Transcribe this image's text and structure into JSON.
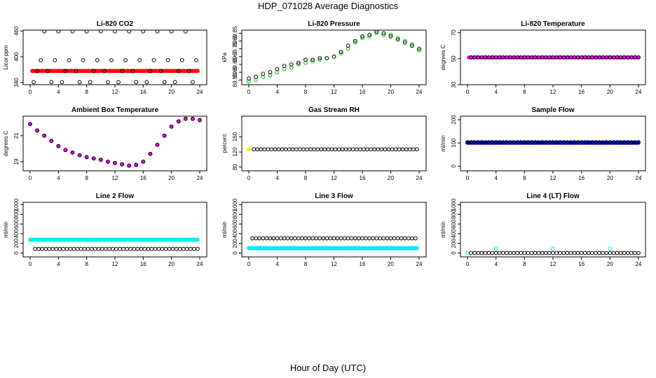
{
  "title": "HDP_071028  Average Diagnostics",
  "xlabel": "Hour of Day (UTC)",
  "chart_data": [
    {
      "type": "scatter",
      "title": "Li-820 CO2",
      "ylabel": "Licor ppm",
      "xlim": [
        0,
        24
      ],
      "ylim": [
        335,
        462
      ],
      "xticks": [
        0,
        4,
        8,
        12,
        16,
        20,
        24
      ],
      "yticks": [
        340,
        400,
        460
      ],
      "series": [
        {
          "name": "CO2 sampled lines",
          "color": "#ff0000",
          "filled": true,
          "x_start": 0.3,
          "x_end": 23.7,
          "x_step": 0.2,
          "y": [
            367
          ]
        },
        {
          "name": "CO2 cycle 1",
          "color": "#000000",
          "filled": false,
          "x_start": 0.5,
          "x_end": 23.6,
          "x_step": 0.5,
          "y": [
            341,
            367,
            392,
            459,
            367,
            341,
            392,
            459
          ]
        }
      ]
    },
    {
      "type": "scatter",
      "title": "Li-820 Pressure",
      "ylabel": "kPa",
      "xlim": [
        0,
        24
      ],
      "ylim": [
        69.52,
        69.87
      ],
      "xticks": [
        0,
        4,
        8,
        12,
        16,
        20,
        24
      ],
      "yticks": [
        69.55,
        69.6,
        69.65,
        69.7,
        69.75,
        69.8,
        69.85
      ],
      "series": [
        {
          "name": "pressure green",
          "color": "#00cc00",
          "filled": false,
          "x": [
            0,
            1,
            2,
            3,
            4,
            5,
            6,
            7,
            8,
            9,
            10,
            11,
            12,
            13,
            14,
            15,
            16,
            17,
            18,
            19,
            20,
            21,
            22,
            23,
            24
          ],
          "y": [
            69.54,
            69.55,
            69.57,
            69.58,
            69.6,
            69.62,
            69.63,
            69.65,
            69.66,
            69.67,
            69.68,
            69.69,
            69.7,
            69.72,
            69.75,
            69.79,
            69.82,
            69.83,
            69.85,
            69.84,
            69.84,
            69.82,
            69.8,
            69.78,
            69.74
          ]
        },
        {
          "name": "pressure black",
          "color": "#000000",
          "filled": false,
          "x": [
            0,
            1,
            2,
            3,
            4,
            5,
            6,
            7,
            8,
            9,
            10,
            11,
            12,
            13,
            14,
            15,
            16,
            17,
            18,
            19,
            20,
            21,
            22,
            23,
            24
          ],
          "y": [
            69.56,
            69.57,
            69.59,
            69.6,
            69.62,
            69.64,
            69.65,
            69.66,
            69.68,
            69.68,
            69.69,
            69.69,
            69.7,
            69.73,
            69.77,
            69.8,
            69.83,
            69.84,
            69.86,
            69.85,
            69.83,
            69.81,
            69.79,
            69.77,
            69.75
          ]
        }
      ]
    },
    {
      "type": "scatter",
      "title": "Li-820 Temperature",
      "ylabel": "degrees C",
      "xlim": [
        0,
        24
      ],
      "ylim": [
        30,
        72
      ],
      "xticks": [
        0,
        4,
        8,
        12,
        16,
        20,
        24
      ],
      "yticks": [
        30,
        50,
        70
      ],
      "series": [
        {
          "name": "temp magenta",
          "color": "#ee00ee",
          "filled": true,
          "x_start": 0.2,
          "x_end": 24,
          "x_step": 0.35,
          "y": [
            51
          ]
        },
        {
          "name": "temp black",
          "color": "#000000",
          "filled": false,
          "x_start": 0.5,
          "x_end": 24,
          "x_step": 0.5,
          "y": [
            51
          ]
        }
      ]
    },
    {
      "type": "scatter",
      "title": "Ambient Box Temperature",
      "ylabel": "degrees C",
      "xlim": [
        0,
        24
      ],
      "ylim": [
        18.3,
        22.5
      ],
      "xticks": [
        0,
        4,
        8,
        12,
        16,
        20,
        24
      ],
      "yticks": [
        19,
        21
      ],
      "series": [
        {
          "name": "ambient magenta",
          "color": "#ee00ee",
          "filled": true,
          "x": [
            0,
            1,
            2,
            3,
            4,
            5,
            6,
            7,
            8,
            9,
            10,
            11,
            12,
            13,
            14,
            15,
            16,
            17,
            18,
            19,
            20,
            21,
            22,
            23,
            24
          ],
          "y": [
            21.9,
            21.4,
            21.0,
            20.6,
            20.2,
            19.9,
            19.7,
            19.5,
            19.35,
            19.25,
            19.15,
            19.0,
            18.9,
            18.8,
            18.7,
            18.75,
            19.0,
            19.6,
            20.3,
            21.0,
            21.7,
            22.1,
            22.3,
            22.3,
            22.2
          ]
        },
        {
          "name": "ambient black",
          "color": "#000000",
          "filled": false,
          "x": [
            0,
            1,
            2,
            3,
            4,
            5,
            6,
            7,
            8,
            9,
            10,
            11,
            12,
            13,
            14,
            15,
            16,
            17,
            18,
            19,
            20,
            21,
            22,
            23,
            24
          ],
          "y": [
            21.9,
            21.4,
            21.0,
            20.6,
            20.2,
            19.9,
            19.7,
            19.5,
            19.35,
            19.25,
            19.15,
            19.0,
            18.9,
            18.8,
            18.7,
            18.75,
            19.0,
            19.6,
            20.3,
            21.0,
            21.7,
            22.1,
            22.3,
            22.3,
            22.2
          ]
        }
      ]
    },
    {
      "type": "scatter",
      "title": "Gas Stream RH",
      "ylabel": "percent",
      "xlim": [
        0,
        24
      ],
      "ylim": [
        70,
        215
      ],
      "xticks": [
        0,
        4,
        8,
        12,
        16,
        20,
        24
      ],
      "yticks": [
        80,
        120,
        160
      ],
      "series": [
        {
          "name": "rh yellow",
          "color": "#ffee00",
          "filled": true,
          "x": [
            0
          ],
          "y": [
            127
          ]
        },
        {
          "name": "rh black",
          "color": "#000000",
          "filled": false,
          "x_start": 0.7,
          "x_end": 24,
          "x_step": 0.5,
          "y": [
            127
          ]
        }
      ]
    },
    {
      "type": "scatter",
      "title": "Sample Flow",
      "ylabel": "ml/min",
      "xlim": [
        0,
        24
      ],
      "ylim": [
        -20,
        215
      ],
      "xticks": [
        0,
        4,
        8,
        12,
        16,
        20,
        24
      ],
      "yticks": [
        0,
        100,
        200
      ],
      "series": [
        {
          "name": "flow blue",
          "color": "#0000cc",
          "filled": true,
          "x_start": 0,
          "x_end": 24,
          "x_step": 0.12,
          "y": [
            101
          ]
        },
        {
          "name": "flow black",
          "color": "#000000",
          "filled": false,
          "x_start": 0,
          "x_end": 24,
          "x_step": 0.5,
          "y": [
            103
          ]
        }
      ]
    },
    {
      "type": "scatter",
      "title": "Line 2 Flow",
      "ylabel": "ml/min",
      "xlim": [
        0,
        24
      ],
      "ylim": [
        -80,
        1050
      ],
      "xticks": [
        0,
        4,
        8,
        12,
        16,
        20,
        24
      ],
      "yticks": [
        0,
        200,
        400,
        600,
        800,
        1000
      ],
      "series": [
        {
          "name": "line2 cyan",
          "color": "#00eeee",
          "filled": true,
          "x_start": 0,
          "x_end": 23.8,
          "x_step": 0.15,
          "y": [
            275
          ]
        },
        {
          "name": "line2 black",
          "color": "#000000",
          "filled": false,
          "x_start": 0.7,
          "x_end": 23.8,
          "x_step": 0.5,
          "y": [
            85
          ]
        }
      ]
    },
    {
      "type": "scatter",
      "title": "Line 3 Flow",
      "ylabel": "ml/min",
      "xlim": [
        0,
        24
      ],
      "ylim": [
        -80,
        1050
      ],
      "xticks": [
        0,
        4,
        8,
        12,
        16,
        20,
        24
      ],
      "yticks": [
        0,
        200,
        400,
        600,
        800,
        1000
      ],
      "series": [
        {
          "name": "line3 cyan",
          "color": "#00eeee",
          "filled": true,
          "x_start": 0,
          "x_end": 23.8,
          "x_step": 0.15,
          "y": [
            100
          ]
        },
        {
          "name": "line3 black",
          "color": "#000000",
          "filled": false,
          "x_start": 0.5,
          "x_end": 23.8,
          "x_step": 0.5,
          "y": [
            305
          ]
        }
      ]
    },
    {
      "type": "scatter",
      "title": "Line 4 (LT) Flow",
      "ylabel": "ml/min",
      "xlim": [
        0,
        24
      ],
      "ylim": [
        -80,
        1050
      ],
      "xticks": [
        0,
        4,
        8,
        12,
        16,
        20,
        24
      ],
      "yticks": [
        0,
        200,
        400,
        600,
        800,
        1000
      ],
      "series": [
        {
          "name": "line4 cyan",
          "color": "#00eeee",
          "filled": false,
          "x": [
            0,
            4,
            12,
            20
          ],
          "y": [
            0,
            90,
            90,
            90
          ]
        },
        {
          "name": "line4 black",
          "color": "#000000",
          "filled": false,
          "x_start": 0.5,
          "x_end": 24,
          "x_step": 0.5,
          "y": [
            0
          ]
        }
      ]
    }
  ]
}
